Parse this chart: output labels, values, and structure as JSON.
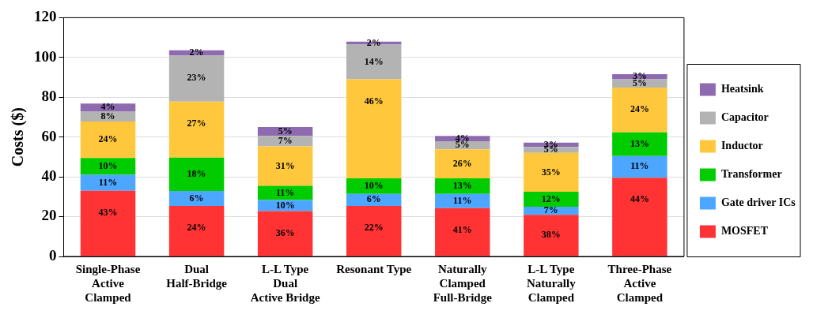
{
  "chart_data": {
    "type": "bar",
    "stacked": true,
    "ylabel": "Costs ($)",
    "ylim": [
      0,
      120
    ],
    "yticks": [
      0,
      20,
      40,
      60,
      80,
      100,
      120
    ],
    "grid": "y",
    "legend": "right",
    "categories": [
      "Single-Phase\nActive\nClamped",
      "Dual\nHalf-Bridge",
      "L-L Type\nDual\nActive Bridge",
      "Resonant Type",
      "Naturally\nClamped\nFull-Bridge",
      "L-L Type\nNaturally\nClamped",
      "Three-Phase\nActive\nClamped"
    ],
    "series": [
      {
        "name": "MOSFET",
        "color": "#ff3333",
        "values": [
          33,
          25.4,
          22.8,
          25.4,
          24.3,
          20.9,
          39.6
        ]
      },
      {
        "name": "Gate driver ICs",
        "color": "#4da6ff",
        "values": [
          8,
          7.5,
          5.6,
          6,
          7.1,
          4.1,
          10.9
        ]
      },
      {
        "name": "Transformer",
        "color": "#00cc00",
        "values": [
          8.5,
          16.8,
          7.1,
          7.9,
          7.9,
          7.5,
          11.9
        ]
      },
      {
        "name": "Inductor",
        "color": "#ffc83c",
        "values": [
          18.3,
          28.1,
          19.8,
          49.7,
          14.5,
          19.5,
          22.5
        ]
      },
      {
        "name": "Capacitor",
        "color": "#b3b3b3",
        "values": [
          5.2,
          23.1,
          5.3,
          17.5,
          4.1,
          3,
          4.1
        ]
      },
      {
        "name": "Heatsink",
        "color": "#8e6bb0",
        "values": [
          3.8,
          2.7,
          4.4,
          1.5,
          2.7,
          2.2,
          2.6
        ]
      }
    ],
    "annotations": [
      {
        "text": "43%",
        "x": "Single-Phase\nActive\nClamped",
        "y": 33
      },
      {
        "text": "11%",
        "x": "Single-Phase\nActive\nClamped",
        "y": 41
      },
      {
        "text": "10%",
        "x": "Single-Phase\nActive\nClamped",
        "y": 49.5
      },
      {
        "text": "24%",
        "x": "Single-Phase\nActive\nClamped",
        "y": 67.8
      },
      {
        "text": "8%",
        "x": "Single-Phase\nActive\nClamped",
        "y": 73
      },
      {
        "text": "4%",
        "x": "Single-Phase\nActive\nClamped",
        "y": 76.8
      },
      {
        "text": "24%",
        "x": "Dual\nHalf-Bridge",
        "y": 25.4
      },
      {
        "text": "6%",
        "x": "Dual\nHalf-Bridge",
        "y": 32.9
      },
      {
        "text": "18%",
        "x": "Dual\nHalf-Bridge",
        "y": 49.7
      },
      {
        "text": "27%",
        "x": "Dual\nHalf-Bridge",
        "y": 77.8
      },
      {
        "text": "23%",
        "x": "Dual\nHalf-Bridge",
        "y": 100.9
      },
      {
        "text": "2%",
        "x": "Dual\nHalf-Bridge",
        "y": 103.6
      },
      {
        "text": "36%",
        "x": "L-L Type\nDual\nActive Bridge",
        "y": 22.8
      },
      {
        "text": "10%",
        "x": "L-L Type\nDual\nActive Bridge",
        "y": 28.4
      },
      {
        "text": "11%",
        "x": "L-L Type\nDual\nActive Bridge",
        "y": 35.5
      },
      {
        "text": "31%",
        "x": "L-L Type\nDual\nActive Bridge",
        "y": 55.3
      },
      {
        "text": "7%",
        "x": "L-L Type\nDual\nActive Bridge",
        "y": 60.6
      },
      {
        "text": "5%",
        "x": "L-L Type\nDual\nActive Bridge",
        "y": 65
      },
      {
        "text": "22%",
        "x": "Resonant Type",
        "y": 25.4
      },
      {
        "text": "6%",
        "x": "Resonant Type",
        "y": 31.4
      },
      {
        "text": "10%",
        "x": "Resonant Type",
        "y": 39.3
      },
      {
        "text": "46%",
        "x": "Resonant Type",
        "y": 89
      },
      {
        "text": "14%",
        "x": "Resonant Type",
        "y": 106.5
      },
      {
        "text": "2%",
        "x": "Resonant Type",
        "y": 108
      },
      {
        "text": "41%",
        "x": "Naturally\nClamped\nFull-Bridge",
        "y": 24.3
      },
      {
        "text": "11%",
        "x": "Naturally\nClamped\nFull-Bridge",
        "y": 31.4
      },
      {
        "text": "13%",
        "x": "Naturally\nClamped\nFull-Bridge",
        "y": 39.3
      },
      {
        "text": "26%",
        "x": "Naturally\nClamped\nFull-Bridge",
        "y": 53.8
      },
      {
        "text": "5%",
        "x": "Naturally\nClamped\nFull-Bridge",
        "y": 57.9
      },
      {
        "text": "4%",
        "x": "Naturally\nClamped\nFull-Bridge",
        "y": 60.6
      },
      {
        "text": "38%",
        "x": "L-L Type\nNaturally\nClamped",
        "y": 20.9
      },
      {
        "text": "7%",
        "x": "L-L Type\nNaturally\nClamped",
        "y": 25
      },
      {
        "text": "12%",
        "x": "L-L Type\nNaturally\nClamped",
        "y": 32.5
      },
      {
        "text": "35%",
        "x": "L-L Type\nNaturally\nClamped",
        "y": 52
      },
      {
        "text": "5%",
        "x": "L-L Type\nNaturally\nClamped",
        "y": 55
      },
      {
        "text": "3%",
        "x": "L-L Type\nNaturally\nClamped",
        "y": 57.2
      },
      {
        "text": "44%",
        "x": "Three-Phase\nActive\nClamped",
        "y": 39.6
      },
      {
        "text": "11%",
        "x": "Three-Phase\nActive\nClamped",
        "y": 50.5
      },
      {
        "text": "13%",
        "x": "Three-Phase\nActive\nClamped",
        "y": 62.4
      },
      {
        "text": "24%",
        "x": "Three-Phase\nActive\nClamped",
        "y": 84.9
      },
      {
        "text": "5%",
        "x": "Three-Phase\nActive\nClamped",
        "y": 89
      },
      {
        "text": "3%",
        "x": "Three-Phase\nActive\nClamped",
        "y": 91.6
      }
    ]
  }
}
